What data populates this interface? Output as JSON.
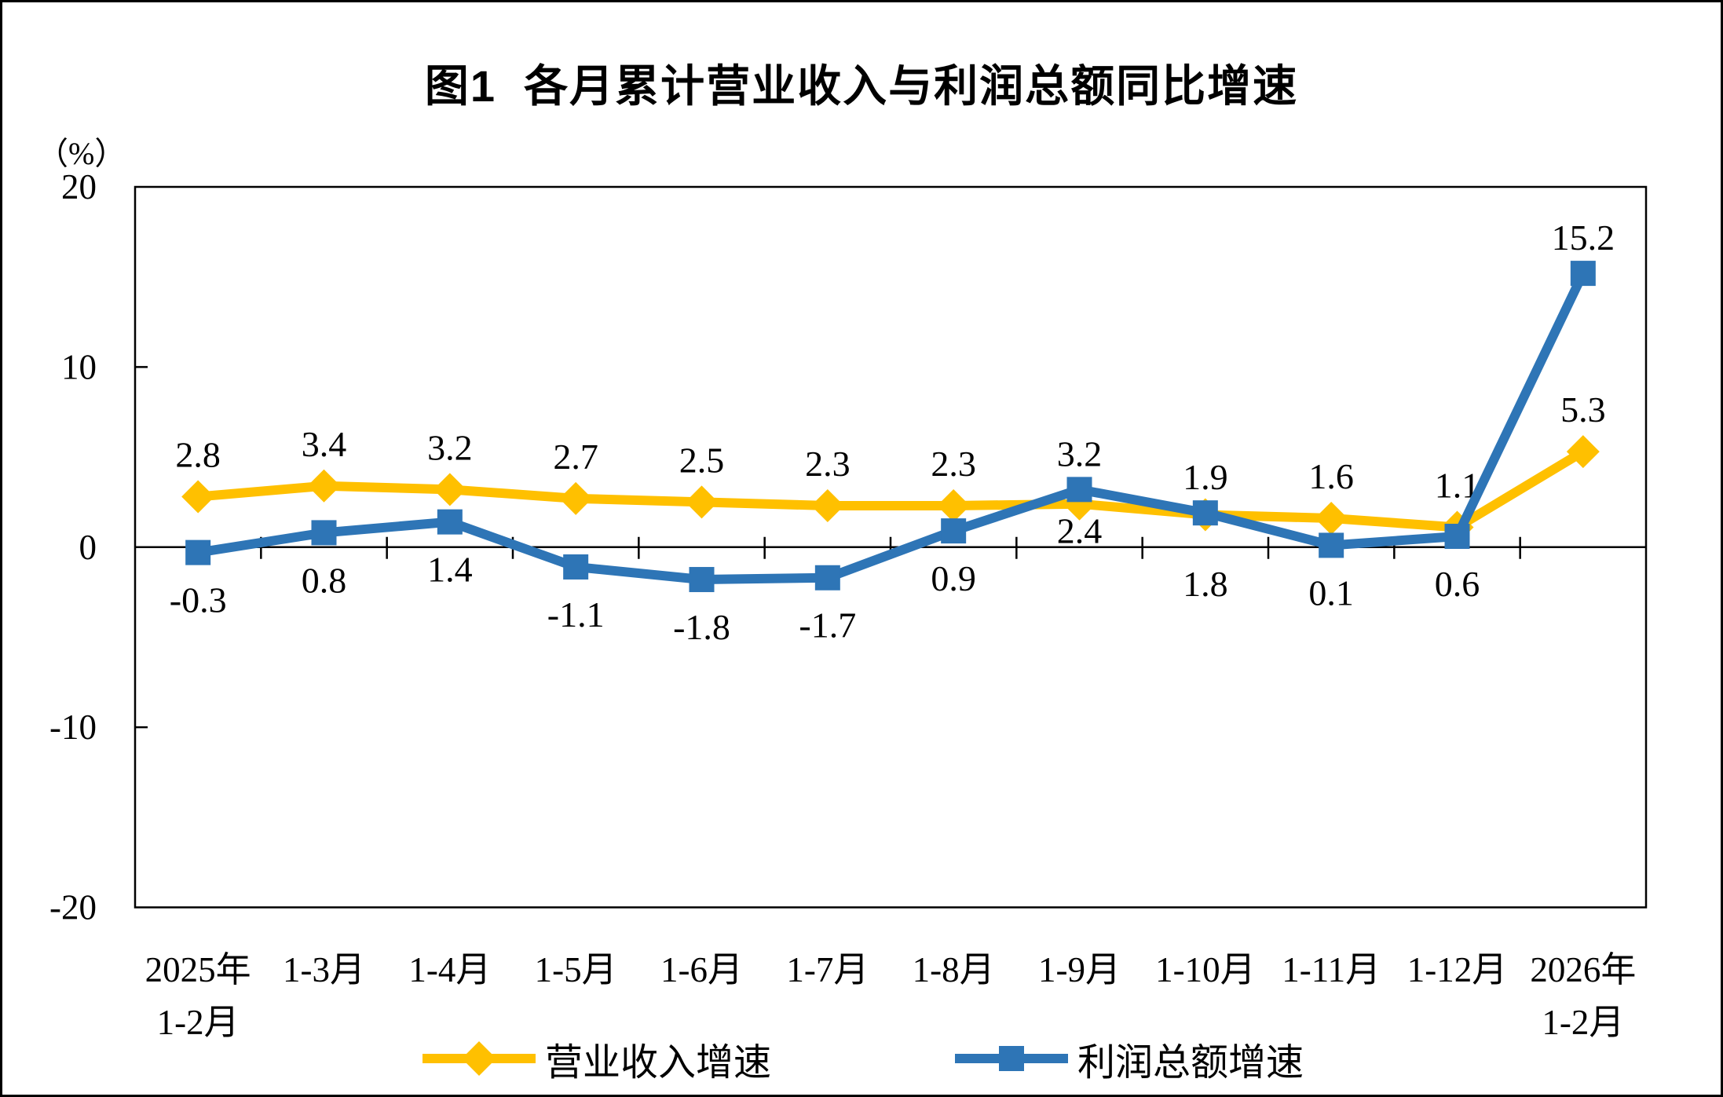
{
  "chart_data": {
    "type": "line",
    "title": "图1  各月累计营业收入与利润总额同比增速",
    "unit_label": "（%）",
    "y_axis": {
      "min": -20,
      "max": 20,
      "ticks": [
        20,
        10,
        0,
        -10,
        -20
      ]
    },
    "categories": [
      [
        "2025年",
        "1-2月"
      ],
      [
        "1-3月"
      ],
      [
        "1-4月"
      ],
      [
        "1-5月"
      ],
      [
        "1-6月"
      ],
      [
        "1-7月"
      ],
      [
        "1-8月"
      ],
      [
        "1-9月"
      ],
      [
        "1-10月"
      ],
      [
        "1-11月"
      ],
      [
        "1-12月"
      ],
      [
        "2026年",
        "1-2月"
      ]
    ],
    "grid": false,
    "legend_position": "bottom",
    "series": [
      {
        "id": "revenue_growth",
        "name": "营业收入增速",
        "color": "#FFC000",
        "marker": "diamond",
        "values": [
          2.8,
          3.4,
          3.2,
          2.7,
          2.5,
          2.3,
          2.3,
          2.4,
          1.8,
          1.6,
          1.1,
          5.3
        ],
        "label_sides": [
          "above",
          "above",
          "above",
          "above",
          "above",
          "above",
          "above",
          "below",
          "belowfar",
          "above",
          "above",
          "above"
        ]
      },
      {
        "id": "profit_growth",
        "name": "利润总额增速",
        "color": "#2E75B6",
        "marker": "square",
        "values": [
          -0.3,
          0.8,
          1.4,
          -1.1,
          -1.8,
          -1.7,
          0.9,
          3.2,
          1.9,
          0.1,
          0.6,
          15.2
        ],
        "label_sides": [
          "below",
          "below",
          "below",
          "below",
          "below",
          "below",
          "below",
          "above",
          "above",
          "below",
          "below",
          "above"
        ]
      }
    ]
  }
}
